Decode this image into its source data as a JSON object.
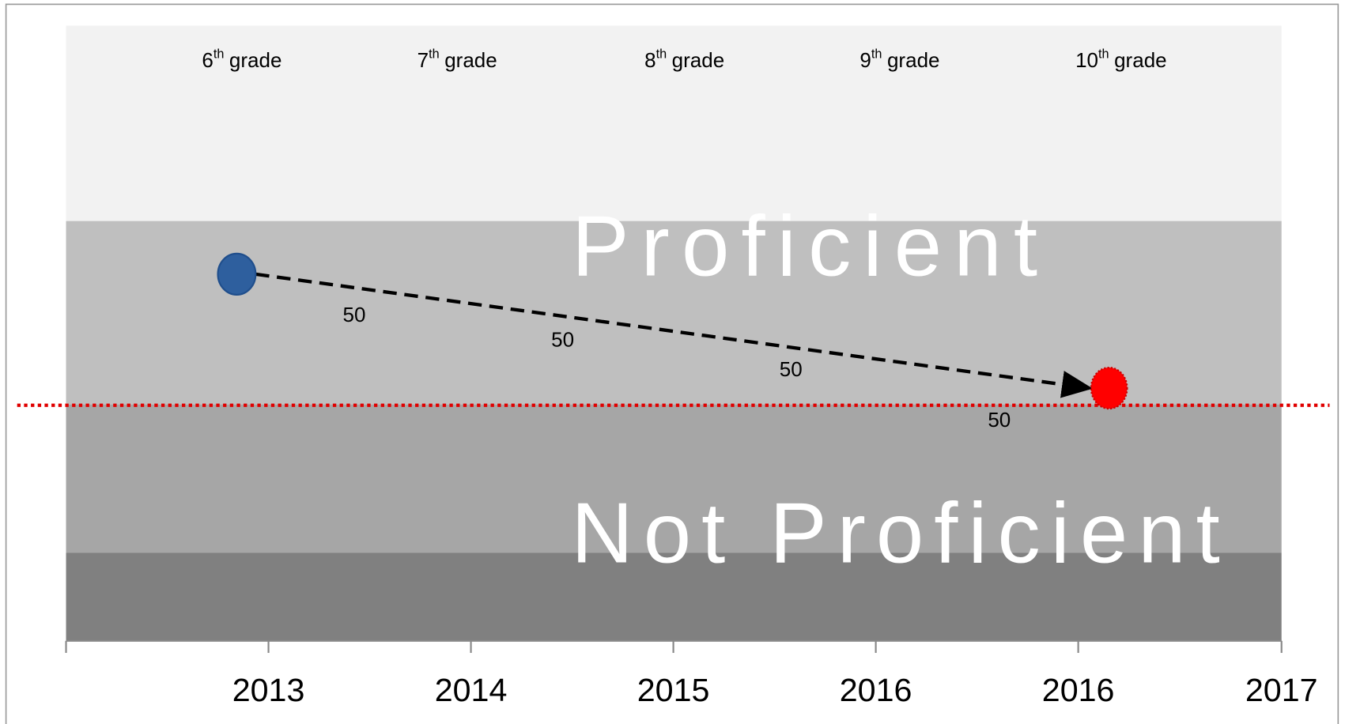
{
  "grade_labels": [
    {
      "number": "6",
      "suffix": "th",
      "word": "grade"
    },
    {
      "number": "7",
      "suffix": "th",
      "word": "grade"
    },
    {
      "number": "8",
      "suffix": "th",
      "word": "grade"
    },
    {
      "number": "9",
      "suffix": "th",
      "word": "grade"
    },
    {
      "number": "10",
      "suffix": "th",
      "word": "grade"
    }
  ],
  "x_axis_labels": [
    "2013",
    "2014",
    "2015",
    "2016",
    "2016",
    "2017"
  ],
  "band_labels": {
    "upper": "Proficient",
    "lower": "Not Proficient"
  },
  "segment_labels": [
    "50",
    "50",
    "50",
    "50"
  ]
}
